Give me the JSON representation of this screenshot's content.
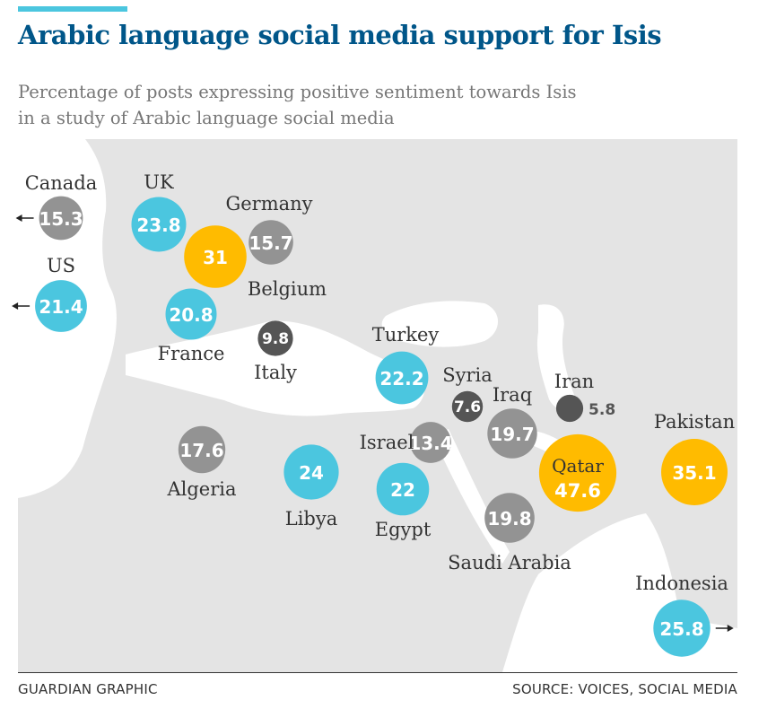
{
  "header": {
    "title": "Arabic language social media support for Isis",
    "subtitle": "Percentage of posts expressing positive sentiment towards Isis in a study of Arabic language social media"
  },
  "footer": {
    "credit": "GUARDIAN GRAPHIC",
    "source": "SOURCE: VOICES, SOCIAL MEDIA"
  },
  "colors": {
    "accent_bar": "#4bc6df",
    "title": "#005689",
    "subtitle": "#767676",
    "land": "#e4e4e4",
    "cyan": "#4bc6df",
    "orange": "#ffbb00",
    "grey": "#939393",
    "dark": "#555555"
  },
  "legend_note": "Bubble area proportional to percentage; colors group countries",
  "chart_data": {
    "type": "bubble-map",
    "unit": "percent",
    "series": [
      {
        "name": "Canada",
        "value": 15.3,
        "color": "grey",
        "offscreen_arrow": "left"
      },
      {
        "name": "UK",
        "value": 23.8,
        "color": "cyan"
      },
      {
        "name": "Germany",
        "value": 15.7,
        "color": "grey"
      },
      {
        "name": "Belgium",
        "value": 31,
        "color": "orange"
      },
      {
        "name": "US",
        "value": 21.4,
        "color": "cyan",
        "offscreen_arrow": "left"
      },
      {
        "name": "France",
        "value": 20.8,
        "color": "cyan"
      },
      {
        "name": "Italy",
        "value": 9.8,
        "color": "dark"
      },
      {
        "name": "Turkey",
        "value": 22.2,
        "color": "cyan"
      },
      {
        "name": "Syria",
        "value": 7.6,
        "color": "dark"
      },
      {
        "name": "Iraq",
        "value": 19.7,
        "color": "grey"
      },
      {
        "name": "Iran",
        "value": 5.8,
        "color": "dark"
      },
      {
        "name": "Israel",
        "value": 13.4,
        "color": "grey"
      },
      {
        "name": "Algeria",
        "value": 17.6,
        "color": "grey"
      },
      {
        "name": "Libya",
        "value": 24,
        "color": "cyan"
      },
      {
        "name": "Egypt",
        "value": 22,
        "color": "cyan"
      },
      {
        "name": "Qatar",
        "value": 47.6,
        "color": "orange"
      },
      {
        "name": "Pakistan",
        "value": 35.1,
        "color": "orange"
      },
      {
        "name": "Saudi Arabia",
        "value": 19.8,
        "color": "grey"
      },
      {
        "name": "Indonesia",
        "value": 25.8,
        "color": "cyan",
        "offscreen_arrow": "right"
      }
    ]
  }
}
